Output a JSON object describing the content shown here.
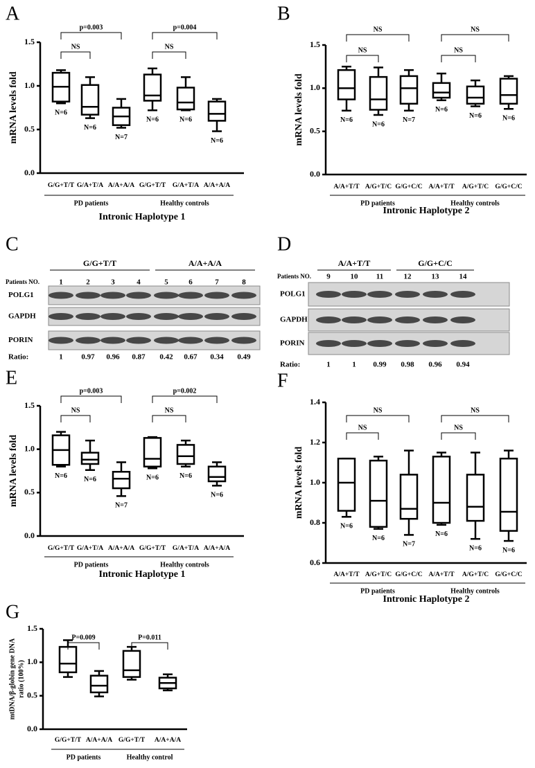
{
  "chart_data": [
    {
      "type": "box",
      "panel_label": "A",
      "ylabel": "mRNA levels fold",
      "xlabel": "Intronic Haplotype 1",
      "categories": [
        "G/G+T/T",
        "G/A+T/A",
        "A/A+A/A",
        "G/G+T/T",
        "G/A+T/A",
        "A/A+A/A"
      ],
      "groups": [
        "PD patients",
        "Healthy controls"
      ],
      "boxes": [
        {
          "min": 0.8,
          "q1": 0.82,
          "median": 0.99,
          "q3": 1.15,
          "max": 1.18
        },
        {
          "min": 0.63,
          "q1": 0.67,
          "median": 0.76,
          "q3": 1.01,
          "max": 1.1
        },
        {
          "min": 0.52,
          "q1": 0.55,
          "median": 0.65,
          "q3": 0.75,
          "max": 0.85
        },
        {
          "min": 0.72,
          "q1": 0.83,
          "median": 0.89,
          "q3": 1.13,
          "max": 1.2
        },
        {
          "min": 0.72,
          "q1": 0.73,
          "median": 0.81,
          "q3": 0.98,
          "max": 1.1
        },
        {
          "min": 0.48,
          "q1": 0.6,
          "median": 0.68,
          "q3": 0.82,
          "max": 0.85
        }
      ],
      "n_labels": [
        "N=6",
        "N=6",
        "N=7",
        "N=6",
        "N=6",
        "N=6"
      ],
      "comparisons": [
        {
          "label": "NS",
          "from": 0,
          "to": 1
        },
        {
          "label": "p=0.003",
          "from": 0,
          "to": 2
        },
        {
          "label": "NS",
          "from": 3,
          "to": 4
        },
        {
          "label": "p=0.004",
          "from": 3,
          "to": 5
        }
      ],
      "ylim": [
        0,
        1.5
      ],
      "yticks": [
        {
          "value": 0,
          "label": "0.0"
        },
        0.5,
        {
          "value": 1,
          "label": "1.0"
        },
        1.5
      ]
    },
    {
      "type": "box",
      "panel_label": "B",
      "ylabel": "mRNA levels fold",
      "xlabel": "Intronic Haplotype 2",
      "categories": [
        "A/A+T/T",
        "A/G+T/C",
        "G/G+C/C",
        "A/A+T/T",
        "A/G+T/C",
        "G/G+C/C"
      ],
      "groups": [
        "PD patients",
        "Healthy controls"
      ],
      "boxes": [
        {
          "min": 0.74,
          "q1": 0.87,
          "median": 1.0,
          "q3": 1.21,
          "max": 1.25
        },
        {
          "min": 0.69,
          "q1": 0.75,
          "median": 0.87,
          "q3": 1.13,
          "max": 1.24
        },
        {
          "min": 0.74,
          "q1": 0.82,
          "median": 1.0,
          "q3": 1.14,
          "max": 1.21
        },
        {
          "min": 0.86,
          "q1": 0.89,
          "median": 0.95,
          "q3": 1.06,
          "max": 1.17
        },
        {
          "min": 0.79,
          "q1": 0.82,
          "median": 0.89,
          "q3": 1.02,
          "max": 1.09
        },
        {
          "min": 0.76,
          "q1": 0.82,
          "median": 0.92,
          "q3": 1.11,
          "max": 1.14
        }
      ],
      "n_labels": [
        "N=6",
        "N=6",
        "N=7",
        "N=6",
        "N=6",
        "N=6"
      ],
      "comparisons": [
        {
          "label": "NS",
          "from": 0,
          "to": 1
        },
        {
          "label": "NS",
          "from": 0,
          "to": 2
        },
        {
          "label": "NS",
          "from": 3,
          "to": 4
        },
        {
          "label": "NS",
          "from": 3,
          "to": 5
        }
      ],
      "ylim": [
        0,
        1.5
      ],
      "yticks": [
        {
          "value": 0,
          "label": "0.0"
        },
        0.5,
        {
          "value": 1,
          "label": "1.0"
        },
        1.5
      ]
    },
    {
      "type": "box",
      "panel_label": "E",
      "ylabel": "mRNA levels fold",
      "xlabel": "Intronic Haplotype 1",
      "categories": [
        "G/G+T/T",
        "G/A+T/A",
        "A/A+A/A",
        "G/G+T/T",
        "G/A+T/A",
        "A/A+A/A"
      ],
      "groups": [
        "PD patients",
        "Healthy controls"
      ],
      "boxes": [
        {
          "min": 0.8,
          "q1": 0.82,
          "median": 0.99,
          "q3": 1.16,
          "max": 1.2
        },
        {
          "min": 0.76,
          "q1": 0.83,
          "median": 0.88,
          "q3": 0.96,
          "max": 1.1
        },
        {
          "min": 0.46,
          "q1": 0.55,
          "median": 0.66,
          "q3": 0.74,
          "max": 0.85
        },
        {
          "min": 0.78,
          "q1": 0.8,
          "median": 0.89,
          "q3": 1.13,
          "max": 1.14
        },
        {
          "min": 0.8,
          "q1": 0.83,
          "median": 0.92,
          "q3": 1.05,
          "max": 1.1
        },
        {
          "min": 0.58,
          "q1": 0.63,
          "median": 0.68,
          "q3": 0.8,
          "max": 0.85
        }
      ],
      "n_labels": [
        "N=6",
        "N=6",
        "N=7",
        "N=6",
        "N=6",
        "N=6"
      ],
      "comparisons": [
        {
          "label": "NS",
          "from": 0,
          "to": 1
        },
        {
          "label": "p=0.003",
          "from": 0,
          "to": 2
        },
        {
          "label": "NS",
          "from": 3,
          "to": 4
        },
        {
          "label": "p=0.002",
          "from": 3,
          "to": 5
        }
      ],
      "ylim": [
        0,
        1.5
      ],
      "yticks": [
        {
          "value": 0,
          "label": "0.0"
        },
        0.5,
        {
          "value": 1,
          "label": "1.0"
        },
        1.5
      ]
    },
    {
      "type": "box",
      "panel_label": "F",
      "ylabel": "mRNA levels fold",
      "xlabel": "Intronic Haplotype 2",
      "categories": [
        "A/A+T/T",
        "A/G+T/C",
        "G/G+C/C",
        "A/A+T/T",
        "A/G+T/C",
        "G/G+C/C"
      ],
      "groups": [
        "PD patients",
        "Healthy controls"
      ],
      "boxes": [
        {
          "min": 0.83,
          "q1": 0.86,
          "median": 1.0,
          "q3": 1.12,
          "max": 1.12
        },
        {
          "min": 0.77,
          "q1": 0.78,
          "median": 0.91,
          "q3": 1.11,
          "max": 1.13
        },
        {
          "min": 0.74,
          "q1": 0.82,
          "median": 0.87,
          "q3": 1.04,
          "max": 1.16
        },
        {
          "min": 0.79,
          "q1": 0.8,
          "median": 0.9,
          "q3": 1.13,
          "max": 1.15
        },
        {
          "min": 0.72,
          "q1": 0.81,
          "median": 0.88,
          "q3": 1.04,
          "max": 1.15
        },
        {
          "min": 0.71,
          "q1": 0.76,
          "median": 0.855,
          "q3": 1.12,
          "max": 1.16
        }
      ],
      "n_labels": [
        "N=6",
        "N=6",
        "N=7",
        "N=6",
        "N=6",
        "N=6"
      ],
      "comparisons": [
        {
          "label": "NS",
          "from": 0,
          "to": 1
        },
        {
          "label": "NS",
          "from": 0,
          "to": 2
        },
        {
          "label": "NS",
          "from": 3,
          "to": 4
        },
        {
          "label": "NS",
          "from": 3,
          "to": 5
        }
      ],
      "ylim": [
        0.6,
        1.4
      ],
      "yticks": [
        0.6,
        0.8,
        {
          "value": 1,
          "label": "1.0"
        },
        1.2,
        1.4
      ]
    },
    {
      "type": "box",
      "panel_label": "G",
      "ylabel": [
        "mtDNA/β-globin gene DNA",
        "ratio (100%)"
      ],
      "categories": [
        "G/G+T/T",
        "A/A+A/A",
        "G/G+T/T",
        "A/A+A/A"
      ],
      "groups": [
        "PD patients",
        "Healthy control"
      ],
      "boxes": [
        {
          "min": 0.78,
          "q1": 0.85,
          "median": 0.98,
          "q3": 1.23,
          "max": 1.33
        },
        {
          "min": 0.49,
          "q1": 0.55,
          "median": 0.65,
          "q3": 0.8,
          "max": 0.87
        },
        {
          "min": 0.74,
          "q1": 0.78,
          "median": 0.88,
          "q3": 1.17,
          "max": 1.23
        },
        {
          "min": 0.58,
          "q1": 0.61,
          "median": 0.69,
          "q3": 0.77,
          "max": 0.82
        }
      ],
      "comparisons": [
        {
          "label": "P=0.009",
          "from": 0,
          "to": 1
        },
        {
          "label": "P=0.011",
          "from": 2,
          "to": 3
        }
      ],
      "ylim": [
        0,
        1.5
      ],
      "yticks": [
        {
          "value": 0,
          "label": "0.0"
        },
        0.5,
        {
          "value": 1,
          "label": "1.0"
        },
        1.5
      ]
    }
  ],
  "blots": [
    {
      "panel_label": "C",
      "groups": [
        {
          "name": "G/G+T/T",
          "lanes": [
            1,
            2,
            3,
            4
          ]
        },
        {
          "name": "A/A+A/A",
          "lanes": [
            5,
            6,
            7,
            8
          ]
        }
      ],
      "lane_title": "Patients NO.",
      "rows": [
        "POLG1",
        "GAPDH",
        "PORIN"
      ],
      "ratio_label": "Ratio:",
      "ratios": [
        1,
        0.97,
        0.96,
        0.87,
        0.42,
        0.67,
        0.34,
        0.49
      ]
    },
    {
      "panel_label": "D",
      "groups": [
        {
          "name": "A/A+T/T",
          "lanes": [
            9,
            10,
            11
          ]
        },
        {
          "name": "G/G+C/C",
          "lanes": [
            12,
            13,
            14
          ]
        }
      ],
      "lane_title": "Patients NO.",
      "rows": [
        "POLG1",
        "GAPDH",
        "PORIN"
      ],
      "ratio_label": "Ratio:",
      "ratios": [
        1,
        1,
        0.99,
        0.98,
        0.96,
        0.94
      ]
    }
  ]
}
